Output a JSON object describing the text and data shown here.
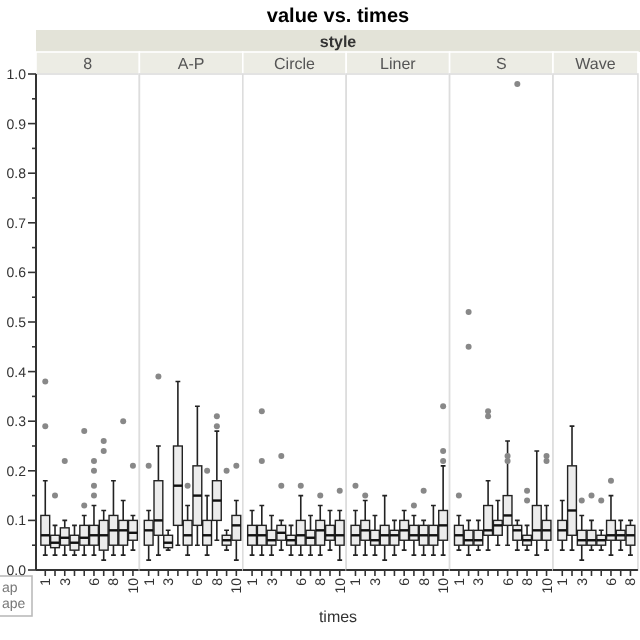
{
  "chart_data": [
    {
      "type": "other",
      "title": "value vs. times",
      "subtitle": "style",
      "xlabel": "times",
      "annotations": [
        "ap",
        "ape"
      ]
    },
    {
      "type": "box",
      "title": "8",
      "categories": [
        "1",
        null,
        "3",
        null,
        null,
        "6",
        null,
        "8",
        null,
        "10"
      ],
      "ylim": [
        0,
        1
      ],
      "yticks": [
        {
          "value": 0,
          "label": "0.0"
        },
        {
          "value": 0.05,
          "label": null
        },
        0.1,
        {
          "value": 0.15,
          "label": null
        },
        0.2,
        {
          "value": 0.25,
          "label": null
        },
        0.3,
        {
          "value": 0.35,
          "label": null
        },
        0.4,
        {
          "value": 0.45,
          "label": null
        },
        0.5,
        {
          "value": 0.55,
          "label": null
        },
        0.6,
        {
          "value": 0.65,
          "label": null
        },
        0.7,
        {
          "value": 0.75,
          "label": null
        },
        0.8,
        {
          "value": 0.85,
          "label": null
        },
        0.9,
        {
          "value": 0.95,
          "label": null
        },
        {
          "value": 1,
          "label": "1.0"
        }
      ],
      "boxes": [
        {
          "low": 0.03,
          "q1": 0.05,
          "median": 0.07,
          "q3": 0.11,
          "high": 0.18,
          "outliers": [
            0.29,
            0.38
          ]
        },
        {
          "low": 0.03,
          "q1": 0.045,
          "median": 0.055,
          "q3": 0.07,
          "high": 0.09,
          "outliers": [
            0.15
          ]
        },
        {
          "low": 0.03,
          "q1": 0.05,
          "median": 0.065,
          "q3": 0.085,
          "high": 0.1,
          "outliers": [
            0.22
          ]
        },
        {
          "low": 0.03,
          "q1": 0.04,
          "median": 0.055,
          "q3": 0.07,
          "high": 0.09
        },
        {
          "low": 0.03,
          "q1": 0.05,
          "median": 0.065,
          "q3": 0.09,
          "high": 0.11,
          "outliers": [
            0.13,
            0.28
          ]
        },
        {
          "low": 0.03,
          "q1": 0.05,
          "median": 0.07,
          "q3": 0.09,
          "high": 0.13,
          "outliers": [
            0.15,
            0.17,
            0.2,
            0.22
          ]
        },
        {
          "low": 0.02,
          "q1": 0.04,
          "median": 0.07,
          "q3": 0.1,
          "high": 0.12,
          "outliers": [
            0.24,
            0.26
          ]
        },
        {
          "low": 0.03,
          "q1": 0.05,
          "median": 0.08,
          "q3": 0.11,
          "high": 0.18
        },
        {
          "low": 0.03,
          "q1": 0.05,
          "median": 0.08,
          "q3": 0.1,
          "high": 0.14,
          "outliers": [
            0.3
          ]
        },
        {
          "low": 0.04,
          "q1": 0.06,
          "median": 0.075,
          "q3": 0.1,
          "high": 0.11,
          "outliers": [
            0.21
          ]
        }
      ]
    },
    {
      "type": "box",
      "title": "A-P",
      "tick_labels": "x",
      "categories": [
        "1",
        null,
        "3",
        null,
        null,
        "6",
        null,
        "8",
        null,
        "10"
      ],
      "ylim": [
        0,
        1
      ],
      "boxes": [
        {
          "low": 0.02,
          "q1": 0.05,
          "median": 0.08,
          "q3": 0.1,
          "high": 0.12,
          "outliers": [
            0.21
          ]
        },
        {
          "low": 0.03,
          "q1": 0.07,
          "median": 0.1,
          "q3": 0.18,
          "high": 0.25,
          "outliers": [
            0.39
          ]
        },
        {
          "low": 0.04,
          "q1": 0.045,
          "median": 0.055,
          "q3": 0.07,
          "high": 0.08
        },
        {
          "low": 0.05,
          "q1": 0.09,
          "median": 0.17,
          "q3": 0.25,
          "high": 0.38
        },
        {
          "low": 0.03,
          "q1": 0.05,
          "median": 0.07,
          "q3": 0.1,
          "high": 0.13,
          "outliers": [
            0.17
          ]
        },
        {
          "low": 0.05,
          "q1": 0.09,
          "median": 0.15,
          "q3": 0.21,
          "high": 0.33
        },
        {
          "low": 0.03,
          "q1": 0.05,
          "median": 0.07,
          "q3": 0.1,
          "high": 0.15,
          "outliers": [
            0.2
          ]
        },
        {
          "low": 0.06,
          "q1": 0.1,
          "median": 0.14,
          "q3": 0.18,
          "high": 0.28,
          "outliers": [
            0.29,
            0.31
          ]
        },
        {
          "low": 0.04,
          "q1": 0.05,
          "median": 0.06,
          "q3": 0.07,
          "high": 0.08,
          "outliers": [
            0.2
          ]
        },
        {
          "low": 0.02,
          "q1": 0.06,
          "median": 0.09,
          "q3": 0.11,
          "high": 0.14,
          "outliers": [
            0.21
          ]
        }
      ]
    },
    {
      "type": "box",
      "title": "Circle",
      "tick_labels": "x",
      "categories": [
        "1",
        null,
        "3",
        null,
        null,
        "6",
        null,
        "8",
        null,
        "10"
      ],
      "ylim": [
        0,
        1
      ],
      "boxes": [
        {
          "low": 0.03,
          "q1": 0.05,
          "median": 0.07,
          "q3": 0.09,
          "high": 0.12
        },
        {
          "low": 0.03,
          "q1": 0.05,
          "median": 0.07,
          "q3": 0.09,
          "high": 0.13,
          "outliers": [
            0.22,
            0.32
          ]
        },
        {
          "low": 0.03,
          "q1": 0.05,
          "median": 0.06,
          "q3": 0.08,
          "high": 0.11
        },
        {
          "low": 0.04,
          "q1": 0.06,
          "median": 0.075,
          "q3": 0.09,
          "high": 0.1,
          "outliers": [
            0.17,
            0.23
          ]
        },
        {
          "low": 0.03,
          "q1": 0.05,
          "median": 0.06,
          "q3": 0.07,
          "high": 0.09
        },
        {
          "low": 0.03,
          "q1": 0.05,
          "median": 0.07,
          "q3": 0.1,
          "high": 0.15,
          "outliers": [
            0.17
          ]
        },
        {
          "low": 0.03,
          "q1": 0.05,
          "median": 0.065,
          "q3": 0.08,
          "high": 0.11
        },
        {
          "low": 0.03,
          "q1": 0.05,
          "median": 0.08,
          "q3": 0.1,
          "high": 0.13,
          "outliers": [
            0.15
          ]
        },
        {
          "low": 0.04,
          "q1": 0.06,
          "median": 0.07,
          "q3": 0.09,
          "high": 0.12
        },
        {
          "low": 0.02,
          "q1": 0.05,
          "median": 0.07,
          "q3": 0.1,
          "high": 0.12,
          "outliers": [
            0.16
          ]
        }
      ]
    },
    {
      "type": "box",
      "title": "Liner",
      "tick_labels": "x",
      "categories": [
        "1",
        null,
        "3",
        null,
        null,
        "6",
        null,
        "8",
        null,
        "10"
      ],
      "ylim": [
        0,
        1
      ],
      "boxes": [
        {
          "low": 0.03,
          "q1": 0.05,
          "median": 0.07,
          "q3": 0.09,
          "high": 0.12,
          "outliers": [
            0.17
          ]
        },
        {
          "low": 0.03,
          "q1": 0.06,
          "median": 0.08,
          "q3": 0.1,
          "high": 0.14,
          "outliers": [
            0.15
          ]
        },
        {
          "low": 0.03,
          "q1": 0.05,
          "median": 0.06,
          "q3": 0.08,
          "high": 0.11
        },
        {
          "low": 0.02,
          "q1": 0.05,
          "median": 0.07,
          "q3": 0.09,
          "high": 0.15
        },
        {
          "low": 0.03,
          "q1": 0.05,
          "median": 0.07,
          "q3": 0.08,
          "high": 0.1
        },
        {
          "low": 0.04,
          "q1": 0.06,
          "median": 0.08,
          "q3": 0.1,
          "high": 0.12
        },
        {
          "low": 0.03,
          "q1": 0.06,
          "median": 0.07,
          "q3": 0.09,
          "high": 0.11,
          "outliers": [
            0.13
          ]
        },
        {
          "low": 0.03,
          "q1": 0.05,
          "median": 0.07,
          "q3": 0.09,
          "high": 0.1,
          "outliers": [
            0.16
          ]
        },
        {
          "low": 0.03,
          "q1": 0.05,
          "median": 0.07,
          "q3": 0.09,
          "high": 0.13
        },
        {
          "low": 0.03,
          "q1": 0.06,
          "median": 0.09,
          "q3": 0.12,
          "high": 0.21,
          "outliers": [
            0.22,
            0.24,
            0.33
          ]
        }
      ]
    },
    {
      "type": "box",
      "title": "S",
      "tick_labels": "x",
      "categories": [
        "1",
        null,
        "3",
        null,
        null,
        "6",
        null,
        "8",
        null,
        "10"
      ],
      "ylim": [
        0,
        1
      ],
      "boxes": [
        {
          "low": 0.04,
          "q1": 0.05,
          "median": 0.07,
          "q3": 0.09,
          "high": 0.11,
          "outliers": [
            0.15
          ]
        },
        {
          "low": 0.03,
          "q1": 0.05,
          "median": 0.06,
          "q3": 0.08,
          "high": 0.1,
          "outliers": [
            0.45,
            0.52
          ]
        },
        {
          "low": 0.04,
          "q1": 0.05,
          "median": 0.06,
          "q3": 0.08,
          "high": 0.1
        },
        {
          "low": 0.04,
          "q1": 0.07,
          "median": 0.08,
          "q3": 0.13,
          "high": 0.18,
          "outliers": [
            0.31,
            0.32
          ]
        },
        {
          "low": 0.05,
          "q1": 0.07,
          "median": 0.09,
          "q3": 0.1,
          "high": 0.14
        },
        {
          "low": 0.05,
          "q1": 0.09,
          "median": 0.11,
          "q3": 0.15,
          "high": 0.26,
          "outliers": [
            0.22,
            0.23
          ]
        },
        {
          "low": 0.04,
          "q1": 0.06,
          "median": 0.08,
          "q3": 0.09,
          "high": 0.1,
          "outliers": [
            0.98
          ]
        },
        {
          "low": 0.04,
          "q1": 0.05,
          "median": 0.06,
          "q3": 0.07,
          "high": 0.09,
          "outliers": [
            0.14,
            0.16
          ]
        },
        {
          "low": 0.03,
          "q1": 0.06,
          "median": 0.08,
          "q3": 0.13,
          "high": 0.24
        },
        {
          "low": 0.04,
          "q1": 0.06,
          "median": 0.08,
          "q3": 0.1,
          "high": 0.13,
          "outliers": [
            0.22,
            0.23
          ]
        }
      ]
    },
    {
      "type": "box",
      "title": "Wave",
      "tick_labels": "x",
      "categories": [
        "1",
        null,
        "3",
        null,
        null,
        "6",
        null,
        "8"
      ],
      "ylim": [
        0,
        1
      ],
      "boxes": [
        {
          "low": 0.04,
          "q1": 0.06,
          "median": 0.08,
          "q3": 0.1,
          "high": 0.14
        },
        {
          "low": 0.04,
          "q1": 0.07,
          "median": 0.12,
          "q3": 0.21,
          "high": 0.29
        },
        {
          "low": 0.02,
          "q1": 0.05,
          "median": 0.06,
          "q3": 0.08,
          "high": 0.11,
          "outliers": [
            0.14
          ]
        },
        {
          "low": 0.04,
          "q1": 0.05,
          "median": 0.06,
          "q3": 0.08,
          "high": 0.1,
          "outliers": [
            0.15
          ]
        },
        {
          "low": 0.04,
          "q1": 0.05,
          "median": 0.06,
          "q3": 0.07,
          "high": 0.08,
          "outliers": [
            0.14
          ]
        },
        {
          "low": 0.03,
          "q1": 0.06,
          "median": 0.07,
          "q3": 0.1,
          "high": 0.15,
          "outliers": [
            0.18
          ]
        },
        {
          "low": 0.04,
          "q1": 0.06,
          "median": 0.07,
          "q3": 0.08,
          "high": 0.1
        },
        {
          "low": 0.03,
          "q1": 0.05,
          "median": 0.07,
          "q3": 0.09,
          "high": 0.1
        }
      ]
    }
  ]
}
